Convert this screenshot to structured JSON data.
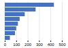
{
  "chart_data": {
    "type": "bar",
    "orientation": "horizontal",
    "categories": [
      null,
      null,
      null,
      null,
      null,
      null,
      null,
      null
    ],
    "values": [
      430,
      270,
      175,
      130,
      115,
      100,
      90,
      45
    ],
    "color": "#4472c4",
    "xlim": [
      0,
      500
    ],
    "xticks": [
      0,
      100,
      200,
      300,
      400,
      500
    ],
    "grid": true,
    "tick_labels": "x"
  }
}
